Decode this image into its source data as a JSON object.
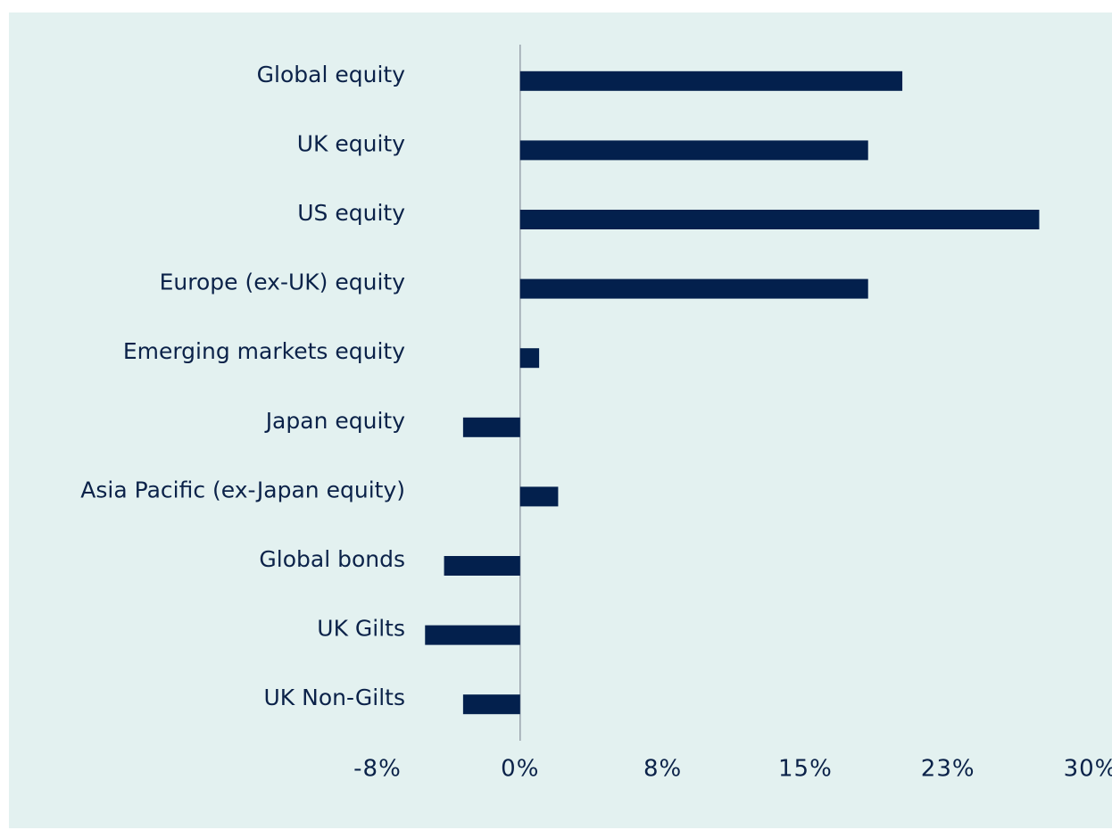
{
  "chart_data": {
    "type": "barh",
    "categories": [
      "Global equity",
      "UK equity",
      "US equity",
      "Europe (ex-UK) equity",
      "Emerging markets equity",
      "Japan equity",
      "Asia Pacific (ex-Japan equity)",
      "Global bonds",
      "UK Gilts",
      "UK Non-Gilts"
    ],
    "values": [
      20.1,
      18.3,
      27.3,
      18.3,
      1.0,
      -3.0,
      2.0,
      -4.0,
      -5.0,
      -3.0
    ],
    "color": "#03204d",
    "xlim": [
      -7.5,
      30
    ],
    "xticks": [
      {
        "value": -7.5,
        "label": "-8%"
      },
      {
        "value": 0,
        "label": "0%"
      },
      {
        "value": 7.5,
        "label": "8%"
      },
      {
        "value": 15,
        "label": "15%"
      },
      {
        "value": 22.5,
        "label": "23%"
      },
      {
        "value": 30,
        "label": "30%"
      }
    ],
    "grid": false
  }
}
